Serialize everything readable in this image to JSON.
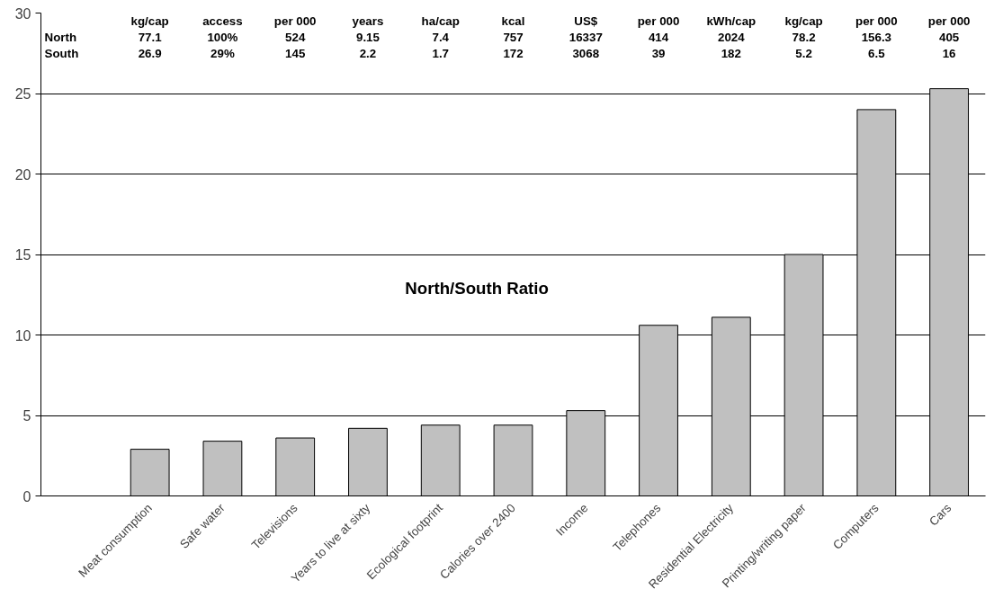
{
  "chart_data": {
    "type": "bar",
    "title": "North/South Ratio",
    "categories": [
      null,
      "Meat consumption",
      "Safe water",
      "Televisions",
      "Years to live at sixty",
      "Ecological footprint",
      "Calories over 2400",
      "Income",
      "Telephones",
      "Residential Electricity",
      "Printing/writing paper",
      "Computers",
      "Cars"
    ],
    "values": [
      null,
      2.9,
      3.4,
      3.6,
      4.2,
      4.4,
      4.4,
      5.3,
      10.6,
      11.1,
      15.0,
      24.0,
      25.3
    ],
    "color": "#c0c0c0",
    "ylim": [
      0,
      30
    ],
    "yticks": [
      0,
      5,
      10,
      15,
      20,
      25,
      30
    ],
    "grid": "y",
    "annotations": [
      "kg/cap",
      "access",
      "per 000",
      "years",
      "ha/cap",
      "kcal",
      "US$",
      "per 000",
      "kWh/cap",
      "kg/cap",
      "per 000",
      "per 000",
      "North",
      "77.1",
      "100%",
      "524",
      "9.15",
      "7.4",
      "757",
      "16337",
      "414",
      "2024",
      "78.2",
      "156.3",
      "405",
      "South",
      "26.9",
      "29%",
      "145",
      "2.2",
      "1.7",
      "172",
      "3068",
      "39",
      "182",
      "5.2",
      "6.5",
      "16"
    ]
  }
}
